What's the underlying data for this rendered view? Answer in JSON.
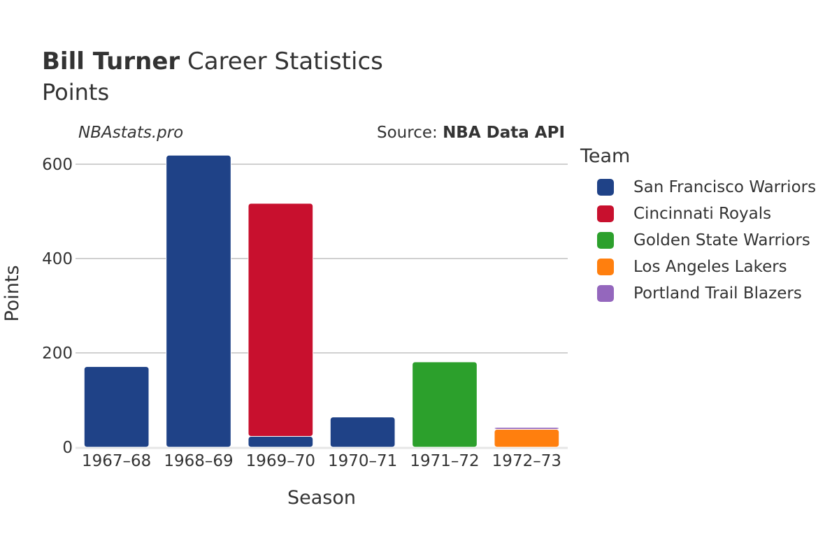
{
  "header": {
    "player": "Bill Turner",
    "title_rest": "Career Statistics",
    "subtitle": "Points",
    "site": "NBAstats.pro",
    "source_prefix": "Source: ",
    "source_name": "NBA Data API"
  },
  "chart_data": {
    "type": "bar",
    "stacked": true,
    "title": "Bill Turner Career Statistics",
    "subtitle": "Points",
    "xlabel": "Season",
    "ylabel": "Points",
    "categories": [
      "1967–68",
      "1968–69",
      "1969–70",
      "1970–71",
      "1971–72",
      "1972–73"
    ],
    "ylim": [
      0,
      650
    ],
    "yticks": [
      0,
      200,
      400,
      600
    ],
    "grid": true,
    "legend_title": "Team",
    "legend_position": "right",
    "series": [
      {
        "name": "San Francisco Warriors",
        "color": "#1f4287",
        "values": [
          171,
          619,
          23,
          64,
          0,
          0
        ]
      },
      {
        "name": "Cincinnati Royals",
        "color": "#c8102e",
        "values": [
          0,
          0,
          494,
          0,
          0,
          0
        ]
      },
      {
        "name": "Golden State Warriors",
        "color": "#2ca02c",
        "values": [
          0,
          0,
          0,
          0,
          181,
          0
        ]
      },
      {
        "name": "Los Angeles Lakers",
        "color": "#ff7f0e",
        "values": [
          0,
          0,
          0,
          0,
          0,
          38
        ]
      },
      {
        "name": "Portland Trail Blazers",
        "color": "#9467bd",
        "values": [
          0,
          0,
          0,
          0,
          0,
          4
        ]
      }
    ]
  }
}
